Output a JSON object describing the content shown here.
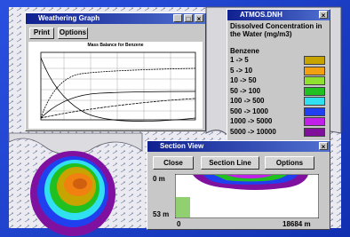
{
  "weathering_graph": {
    "title": "Weathering Graph",
    "buttons": [
      "Print",
      "Options"
    ],
    "chart_title": "Mass Balance for Benzene"
  },
  "legend": {
    "title": "ATMOS.DNH",
    "heading": "Dissolved Concentration in the Water (mg/m3)",
    "substance": "Benzene",
    "items": [
      {
        "label": "1 -> 5",
        "color": "#c8a400"
      },
      {
        "label": "5 -> 10",
        "color": "#f0a010"
      },
      {
        "label": "10 -> 50",
        "color": "#90e030"
      },
      {
        "label": "50 -> 100",
        "color": "#20c020"
      },
      {
        "label": "100 -> 500",
        "color": "#30e0f0"
      },
      {
        "label": "500 -> 1000",
        "color": "#2040f0"
      },
      {
        "label": "1000 -> 5000",
        "color": "#c020e8"
      },
      {
        "label": "5000 -> 10000",
        "color": "#80109c"
      }
    ]
  },
  "section_view": {
    "title": "Section View",
    "buttons": [
      "Close",
      "Section Line",
      "Options"
    ],
    "depth_top": "0 m",
    "depth_bottom": "53 m",
    "distance_start": "0",
    "distance_end": "18684 m"
  }
}
